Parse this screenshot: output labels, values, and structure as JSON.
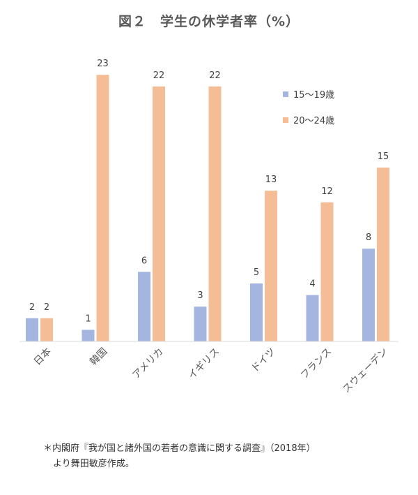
{
  "title": "図２　学生の休学者率（%）",
  "chart_data": {
    "type": "bar",
    "title": "図２　学生の休学者率（%）",
    "categories": [
      "日本",
      "韓国",
      "アメリカ",
      "イギリス",
      "ドイツ",
      "フランス",
      "スウェーデン"
    ],
    "series": [
      {
        "name": "15〜19歳",
        "values": [
          2,
          1,
          6,
          3,
          5,
          4,
          8
        ],
        "color": "#a4b6e0"
      },
      {
        "name": "20〜24歳",
        "values": [
          2,
          23,
          22,
          22,
          13,
          12,
          15
        ],
        "color": "#f5bd95"
      }
    ],
    "ylim": [
      0,
      25
    ],
    "grid": false,
    "legend": "top-right",
    "xlabel": "",
    "ylabel": ""
  },
  "note": {
    "line1": "＊内閣府『我が国と諸外国の若者の意識に関する調査』（2018年）",
    "line2": "より舞田敏彦作成。"
  }
}
